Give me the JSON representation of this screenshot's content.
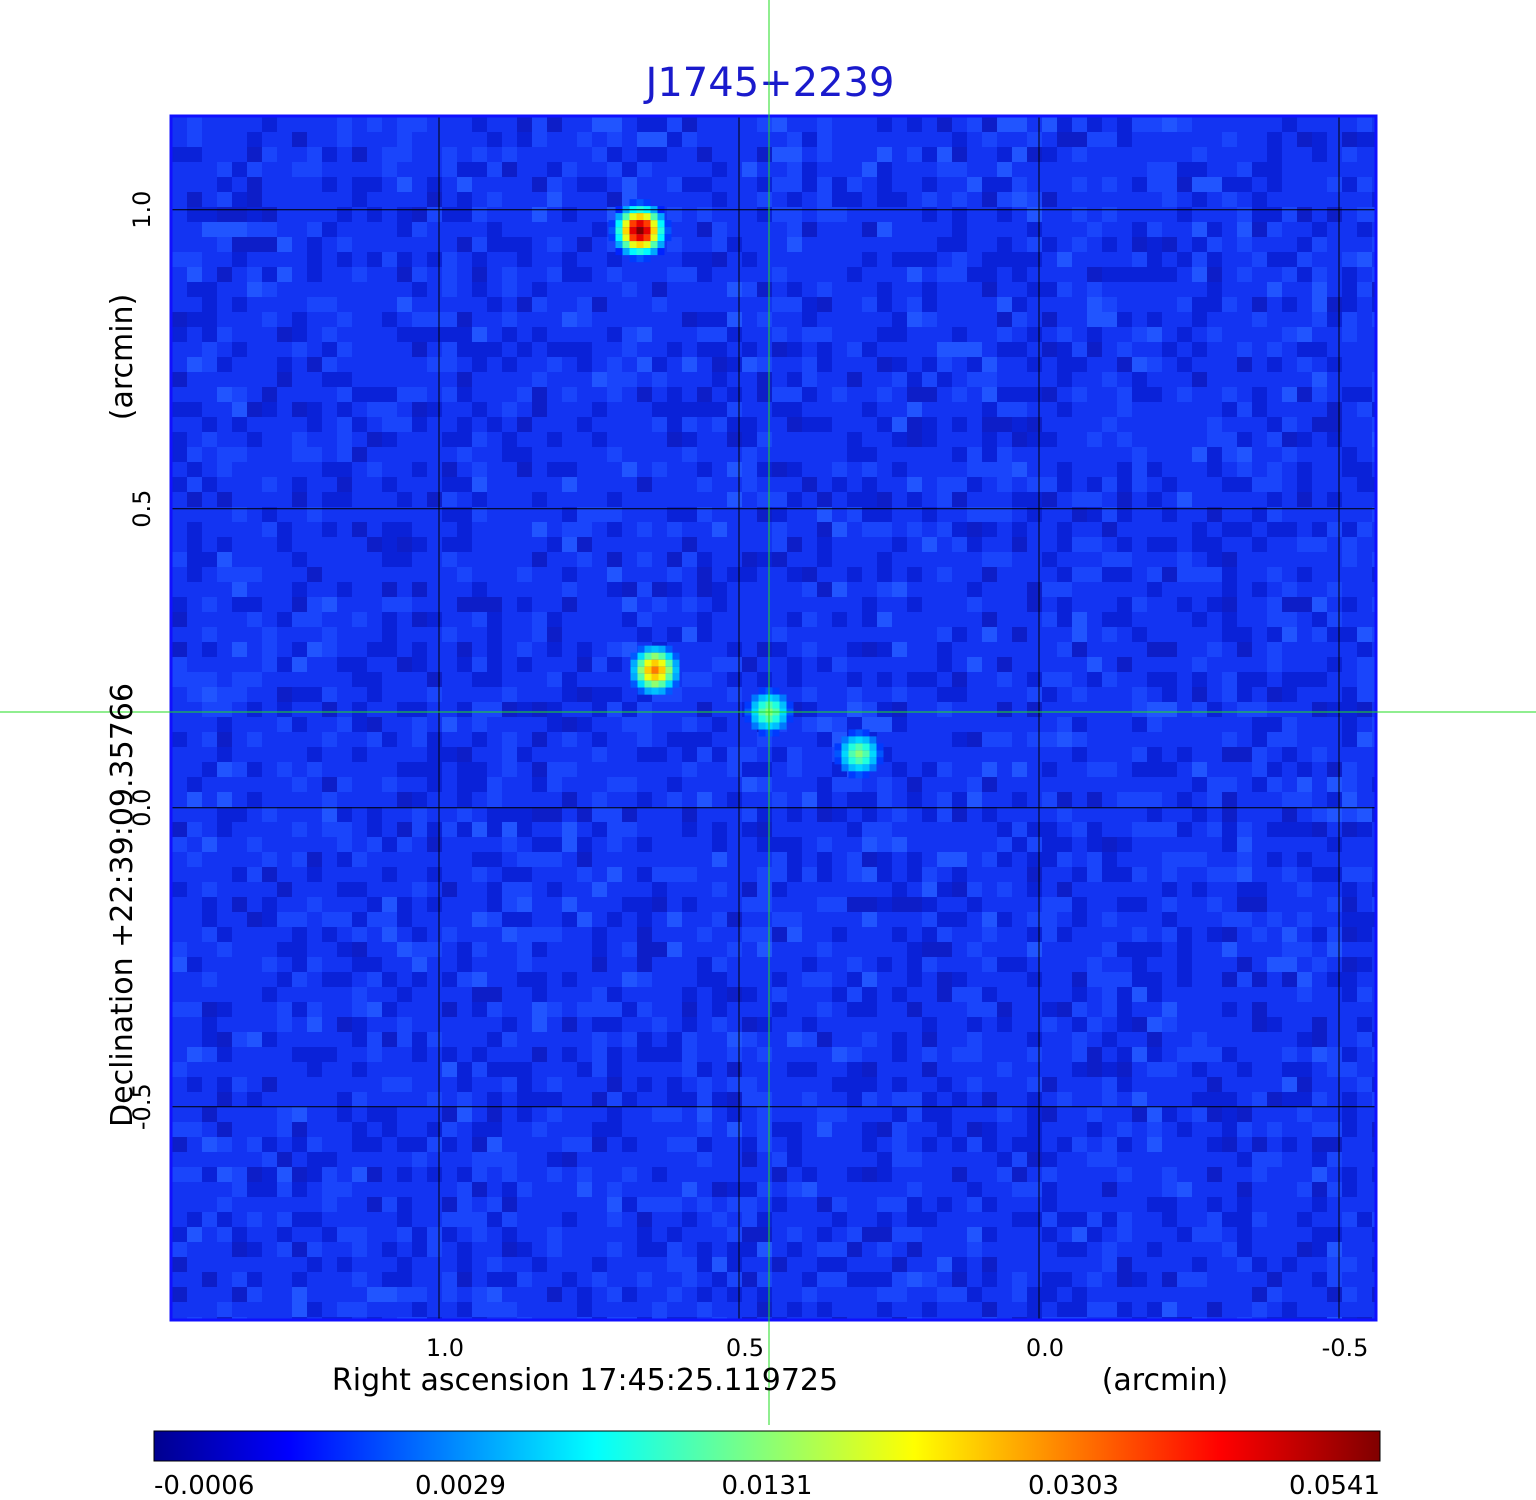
{
  "chart_data": {
    "type": "heatmap",
    "title": "J1745+2239",
    "colors": {
      "title": "#1a1acc",
      "crosshair": "#22dd22",
      "grid": "#000000",
      "frame": "#1010ff"
    },
    "colormap": "jet",
    "x_axis": {
      "label_main": "Right ascension  17:45:25.119725",
      "label_unit": "(arcmin)",
      "ticks": [
        "1.0",
        "0.5",
        "0.0",
        "-0.5"
      ],
      "tick_values": [
        1.0,
        0.5,
        0.0,
        -0.5
      ],
      "range": [
        1.445,
        -0.56
      ],
      "direction": "decreasing"
    },
    "y_axis": {
      "label_main": "Declination  +22:39:09.35766",
      "label_unit": "(arcmin)",
      "ticks": [
        "1.0",
        "0.5",
        "0.0",
        "-0.5"
      ],
      "tick_values": [
        1.0,
        0.5,
        0.0,
        -0.5
      ],
      "range": [
        -0.855,
        1.155
      ]
    },
    "grid": true,
    "crosshair": {
      "x": 0.45,
      "y": 0.16
    },
    "sources": [
      {
        "x": 0.665,
        "y": 0.965,
        "peak": 0.0541
      },
      {
        "x": 0.64,
        "y": 0.23,
        "peak": 0.0303
      },
      {
        "x": 0.45,
        "y": 0.16,
        "peak": 0.0131
      },
      {
        "x": 0.3,
        "y": 0.09,
        "peak": 0.0131
      }
    ],
    "background_level": 0.0,
    "colorbar": {
      "ticks": [
        "-0.0006",
        "0.0029",
        "0.0131",
        "0.0303",
        "0.0541"
      ],
      "values": [
        -0.0006,
        0.0029,
        0.0131,
        0.0303,
        0.0541
      ]
    }
  }
}
